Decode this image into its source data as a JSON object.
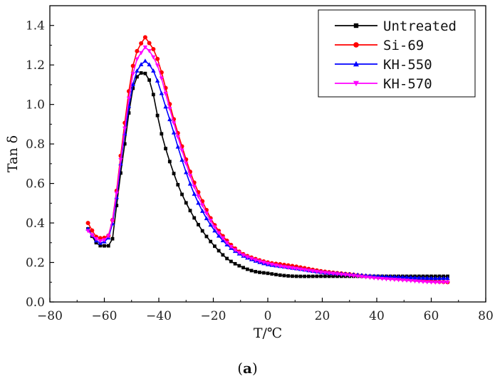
{
  "caption": {
    "open": "(",
    "label": "a",
    "close": ")"
  },
  "chart_data": {
    "type": "line",
    "title": "",
    "xlabel": "T/℃",
    "ylabel": "Tan δ",
    "xlim": [
      -80,
      80
    ],
    "ylim": [
      0.0,
      1.5
    ],
    "xticks": [
      -80,
      -60,
      -40,
      -20,
      0,
      20,
      40,
      60,
      80
    ],
    "xtick_labels": [
      "−80",
      "−60",
      "−40",
      "−20",
      "0",
      "20",
      "40",
      "60",
      "80"
    ],
    "yticks": [
      0.0,
      0.2,
      0.4,
      0.6,
      0.8,
      1.0,
      1.2,
      1.4
    ],
    "ytick_labels": [
      "0.0",
      "0.2",
      "0.4",
      "0.6",
      "0.8",
      "1.0",
      "1.2",
      "1.4"
    ],
    "grid": false,
    "legend_position": "top-right",
    "series": [
      {
        "name": "Untreated",
        "color": "#000000",
        "marker": "square",
        "x": [
          -66,
          -63,
          -61,
          -57,
          -55,
          -52,
          -50,
          -48,
          -46,
          -44,
          -42,
          -40,
          -38,
          -35,
          -32,
          -28,
          -24,
          -20,
          -15,
          -10,
          -5,
          0,
          5,
          10,
          20,
          30,
          40,
          50,
          60,
          66
        ],
        "y": [
          0.37,
          0.3,
          0.285,
          0.32,
          0.55,
          0.85,
          1.05,
          1.14,
          1.16,
          1.14,
          1.05,
          0.91,
          0.8,
          0.67,
          0.56,
          0.45,
          0.36,
          0.29,
          0.22,
          0.18,
          0.155,
          0.145,
          0.135,
          0.13,
          0.13,
          0.13,
          0.13,
          0.13,
          0.13,
          0.13
        ]
      },
      {
        "name": "Si-69",
        "color": "#ff0000",
        "marker": "circle",
        "x": [
          -66,
          -63,
          -61,
          -58,
          -56,
          -54,
          -52,
          -50,
          -48,
          -46,
          -45,
          -44,
          -42,
          -40,
          -38,
          -35,
          -32,
          -28,
          -24,
          -20,
          -15,
          -10,
          -5,
          0,
          5,
          10,
          20,
          30,
          40,
          50,
          60,
          66
        ],
        "y": [
          0.4,
          0.33,
          0.325,
          0.35,
          0.51,
          0.74,
          0.96,
          1.16,
          1.27,
          1.32,
          1.34,
          1.32,
          1.28,
          1.21,
          1.11,
          0.95,
          0.81,
          0.64,
          0.51,
          0.4,
          0.31,
          0.25,
          0.22,
          0.2,
          0.19,
          0.18,
          0.155,
          0.14,
          0.125,
          0.115,
          0.105,
          0.1
        ]
      },
      {
        "name": "KH-550",
        "color": "#0000ff",
        "marker": "triangle-up",
        "x": [
          -66,
          -63,
          -61,
          -58,
          -56,
          -54,
          -52,
          -50,
          -48,
          -46,
          -45,
          -44,
          -42,
          -40,
          -38,
          -35,
          -32,
          -28,
          -24,
          -20,
          -15,
          -10,
          -5,
          0,
          5,
          10,
          20,
          30,
          40,
          50,
          60,
          66
        ],
        "y": [
          0.37,
          0.31,
          0.3,
          0.34,
          0.48,
          0.7,
          0.9,
          1.07,
          1.17,
          1.21,
          1.22,
          1.21,
          1.17,
          1.1,
          1.01,
          0.88,
          0.74,
          0.58,
          0.46,
          0.37,
          0.29,
          0.24,
          0.21,
          0.19,
          0.18,
          0.17,
          0.15,
          0.14,
          0.13,
          0.125,
          0.12,
          0.12
        ]
      },
      {
        "name": "KH-570",
        "color": "#ff00ff",
        "marker": "triangle-down",
        "x": [
          -66,
          -63,
          -61,
          -58,
          -56,
          -54,
          -52,
          -50,
          -48,
          -46,
          -45,
          -44,
          -42,
          -40,
          -38,
          -35,
          -32,
          -28,
          -24,
          -20,
          -15,
          -10,
          -5,
          0,
          5,
          10,
          20,
          30,
          40,
          50,
          60,
          66
        ],
        "y": [
          0.36,
          0.32,
          0.31,
          0.35,
          0.5,
          0.72,
          0.93,
          1.12,
          1.23,
          1.27,
          1.29,
          1.28,
          1.24,
          1.18,
          1.08,
          0.93,
          0.79,
          0.62,
          0.49,
          0.39,
          0.3,
          0.245,
          0.215,
          0.195,
          0.18,
          0.17,
          0.15,
          0.135,
          0.12,
          0.11,
          0.1,
          0.1
        ]
      }
    ]
  }
}
